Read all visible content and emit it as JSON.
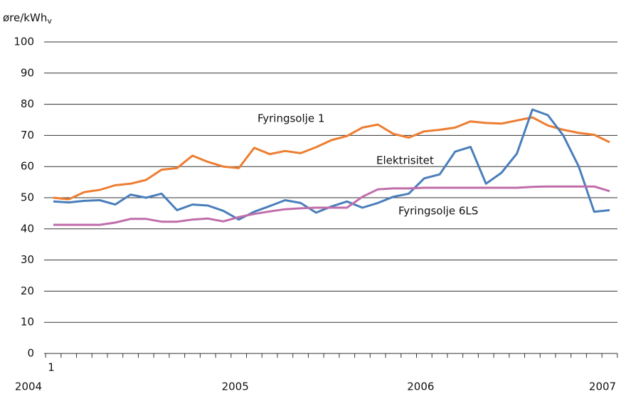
{
  "chart_data": {
    "type": "line",
    "y_label": "øre/kWh",
    "y_label_sub": "v",
    "categories": [
      "2004",
      null,
      null,
      null,
      null,
      null,
      null,
      null,
      null,
      null,
      null,
      null,
      "2005",
      null,
      null,
      null,
      null,
      null,
      null,
      null,
      null,
      null,
      null,
      null,
      "2006",
      null,
      null,
      null,
      null,
      null,
      null,
      null,
      null,
      null,
      null,
      null,
      "2007"
    ],
    "x_note": "1",
    "ylim": [
      0,
      100
    ],
    "yticks": [
      0,
      10,
      20,
      30,
      40,
      50,
      60,
      70,
      80,
      90,
      100
    ],
    "grid": true,
    "series": [
      {
        "name": "Fyringsolje  1",
        "color": "#ed7d31",
        "values": [
          50,
          49.5,
          51.8,
          52.5,
          54,
          54.5,
          55.7,
          59,
          59.5,
          63.5,
          61.5,
          60,
          59.5,
          66,
          64,
          65,
          64.3,
          66.2,
          68.5,
          69.8,
          72.5,
          73.5,
          70.5,
          69.3,
          71.3,
          71.8,
          72.5,
          74.5,
          74,
          73.8,
          74.8,
          75.8,
          73.2,
          71.8,
          70.8,
          70.2,
          67.8
        ]
      },
      {
        "name": "Elektrisitet",
        "color": "#4a7ebb",
        "values": [
          48.8,
          48.5,
          49,
          49.2,
          47.8,
          51,
          50,
          51.3,
          46,
          47.8,
          47.5,
          45.8,
          43,
          45.5,
          47.3,
          49.2,
          48.3,
          45.2,
          47.2,
          48.8,
          46.8,
          48.3,
          50.3,
          51.3,
          56.2,
          57.5,
          64.8,
          66.3,
          54.5,
          58,
          64.2,
          78.3,
          76.5,
          70,
          60,
          45.5,
          46
        ]
      },
      {
        "name": "Fyringsolje 6LS",
        "color": "#c06daa",
        "values": [
          41.3,
          41.3,
          41.3,
          41.3,
          42,
          43.2,
          43.2,
          42.3,
          42.3,
          43,
          43.3,
          42.4,
          43.8,
          44.8,
          45.6,
          46.3,
          46.6,
          46.8,
          46.8,
          46.8,
          50.3,
          52.7,
          53,
          53,
          53.2,
          53.2,
          53.2,
          53.2,
          53.2,
          53.2,
          53.2,
          53.5,
          53.6,
          53.6,
          53.6,
          53.6,
          52.1
        ]
      }
    ]
  }
}
